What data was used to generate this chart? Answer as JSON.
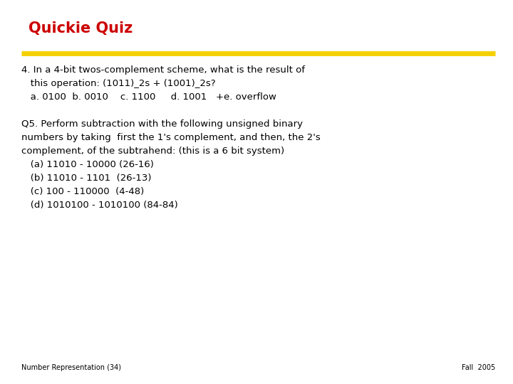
{
  "title": "Quickie Quiz",
  "title_color": "#cc0000",
  "separator_color": "#f5d000",
  "background_color": "#ffffff",
  "body_lines": [
    "4. In a 4-bit twos-complement scheme, what is the result of",
    "   this operation: (1011)_2s + (1001)_2s?",
    "   a. 0100  b. 0010    c. 1100     d. 1001   +e. overflow",
    "",
    "Q5. Perform subtraction with the following unsigned binary",
    "numbers by taking  first the 1's complement, and then, the 2's",
    "complement, of the subtrahend: (this is a 6 bit system)",
    "   (a) 11010 - 10000 (26-16)",
    "   (b) 11010 - 1101  (26-13)",
    "   (c) 100 - 110000  (4-48)",
    "   (d) 1010100 - 1010100 (84-84)"
  ],
  "footer_left": "Number Representation (34)",
  "footer_right": "Fall  2005",
  "font_family": "DejaVu Sans",
  "title_fontsize": 15,
  "body_fontsize": 9.5,
  "footer_fontsize": 7
}
